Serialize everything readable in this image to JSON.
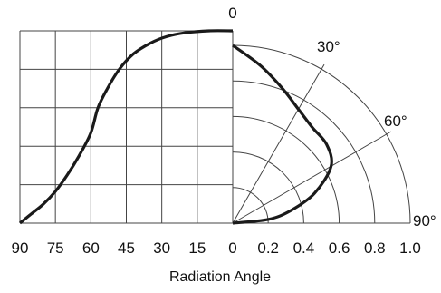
{
  "chart_data": {
    "type": "line",
    "top_label": "0",
    "xlabel": "Radiation Angle",
    "left_ticks": [
      "90",
      "75",
      "60",
      "45",
      "30",
      "15",
      "0"
    ],
    "right_ticks": [
      "0",
      "0.2",
      "0.4",
      "0.6",
      "0.8",
      "1.0"
    ],
    "angle_labels": [
      "30°",
      "60°",
      "90°"
    ],
    "angle_range_deg": [
      0,
      90
    ],
    "intensity_range": [
      0,
      1.0
    ],
    "left_panel": {
      "description_of_axes": "angle (deg) horizontal, relative intensity vertical",
      "series": [
        {
          "angle": 90,
          "intensity": 0.0
        },
        {
          "angle": 85,
          "intensity": 0.05
        },
        {
          "angle": 80,
          "intensity": 0.1
        },
        {
          "angle": 75,
          "intensity": 0.165
        },
        {
          "angle": 70,
          "intensity": 0.25
        },
        {
          "angle": 65,
          "intensity": 0.35
        },
        {
          "angle": 60,
          "intensity": 0.47
        },
        {
          "angle": 57,
          "intensity": 0.6
        },
        {
          "angle": 53,
          "intensity": 0.7
        },
        {
          "angle": 48,
          "intensity": 0.8
        },
        {
          "angle": 42,
          "intensity": 0.88
        },
        {
          "angle": 35,
          "intensity": 0.935
        },
        {
          "angle": 28,
          "intensity": 0.97
        },
        {
          "angle": 20,
          "intensity": 0.99
        },
        {
          "angle": 10,
          "intensity": 1.0
        },
        {
          "angle": 0,
          "intensity": 1.0
        }
      ]
    },
    "right_panel": {
      "description_of_axes": "polar: angle from vertical, radius = relative intensity",
      "series": [
        {
          "angle": 0,
          "intensity": 1.0
        },
        {
          "angle": 10,
          "intensity": 0.9
        },
        {
          "angle": 20,
          "intensity": 0.81
        },
        {
          "angle": 30,
          "intensity": 0.74
        },
        {
          "angle": 40,
          "intensity": 0.7
        },
        {
          "angle": 50,
          "intensity": 0.69
        },
        {
          "angle": 60,
          "intensity": 0.64
        },
        {
          "angle": 70,
          "intensity": 0.49
        },
        {
          "angle": 78,
          "intensity": 0.33
        },
        {
          "angle": 84,
          "intensity": 0.2
        },
        {
          "angle": 90,
          "intensity": 0.0
        }
      ]
    },
    "grid": true
  }
}
